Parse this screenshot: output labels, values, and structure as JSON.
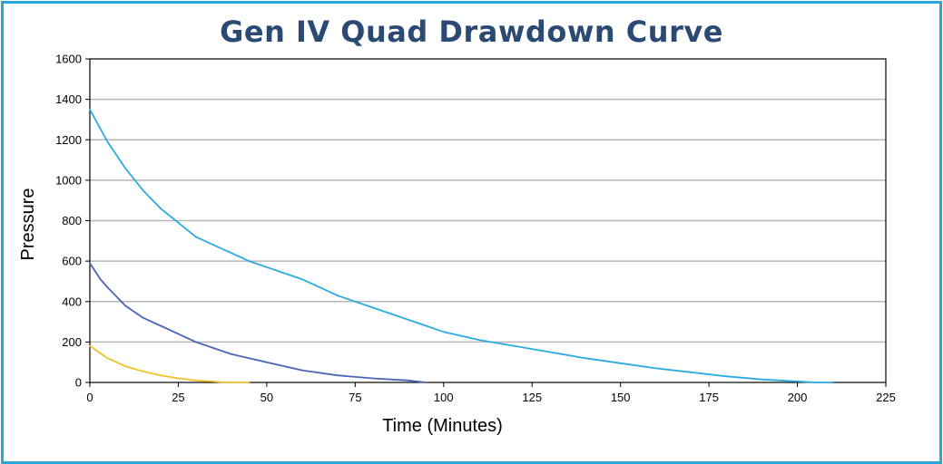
{
  "chart_data": {
    "type": "line",
    "title": "Gen IV Quad Drawdown Curve",
    "xlabel": "Time (Minutes)",
    "ylabel": "Pressure",
    "xlim": [
      0,
      225
    ],
    "ylim": [
      0,
      1600
    ],
    "xticks": [
      0,
      25,
      50,
      75,
      100,
      125,
      150,
      175,
      200,
      225
    ],
    "yticks": [
      0,
      200,
      400,
      600,
      800,
      1000,
      1200,
      1400,
      1600
    ],
    "grid": "horizontal",
    "legend": "none",
    "series": [
      {
        "color": "#29abe2",
        "x": [
          0,
          5,
          10,
          15,
          20,
          25,
          30,
          35,
          40,
          45,
          50,
          55,
          60,
          65,
          70,
          75,
          80,
          85,
          90,
          95,
          100,
          110,
          120,
          130,
          140,
          150,
          160,
          170,
          180,
          190,
          200,
          205,
          210
        ],
        "y": [
          1350,
          1190,
          1060,
          950,
          860,
          790,
          720,
          680,
          640,
          600,
          570,
          540,
          510,
          470,
          430,
          400,
          370,
          340,
          310,
          280,
          250,
          210,
          180,
          150,
          120,
          95,
          70,
          50,
          30,
          15,
          5,
          0,
          0
        ]
      },
      {
        "color": "#4a64b8",
        "x": [
          0,
          3,
          5,
          10,
          15,
          20,
          25,
          30,
          35,
          40,
          50,
          60,
          70,
          80,
          90,
          95
        ],
        "y": [
          590,
          510,
          470,
          380,
          320,
          280,
          240,
          200,
          170,
          140,
          100,
          60,
          35,
          20,
          10,
          0
        ]
      },
      {
        "color": "#f2c12e",
        "x": [
          0,
          5,
          10,
          15,
          20,
          25,
          30,
          35,
          38,
          45
        ],
        "y": [
          180,
          120,
          80,
          55,
          35,
          20,
          10,
          5,
          0,
          0
        ]
      }
    ]
  }
}
